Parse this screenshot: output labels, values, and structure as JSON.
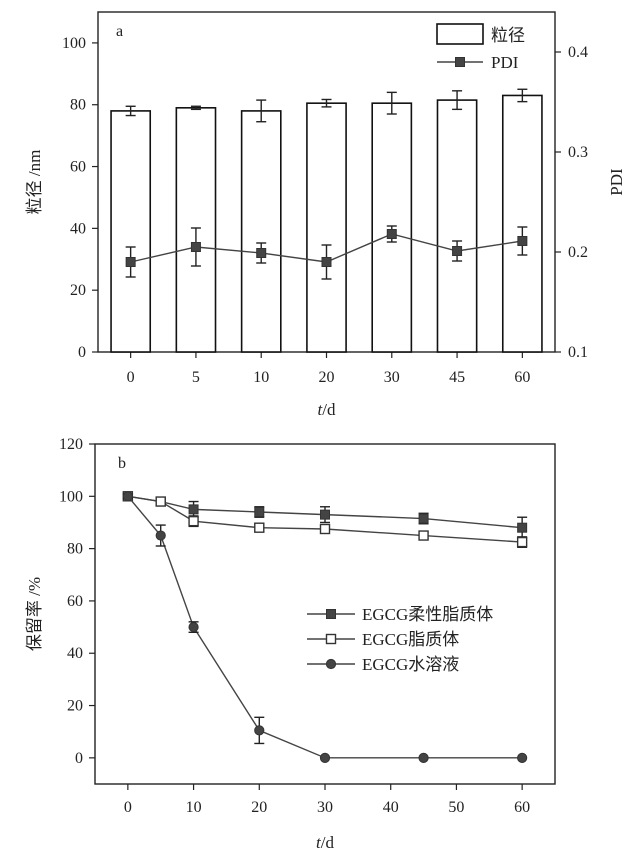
{
  "chart_data": [
    {
      "type": "bar",
      "panel_label": "a",
      "categories": [
        "0",
        "5",
        "10",
        "20",
        "30",
        "45",
        "60"
      ],
      "xlabel": "t/d",
      "xlabel_italic": "t",
      "xlabel_unit": "/d",
      "ylabel": "粒径 /nm",
      "ylabel_right": "PDI",
      "ylim": [
        0,
        110
      ],
      "yticks": [
        0,
        20,
        40,
        60,
        80,
        100
      ],
      "ylim_right": [
        0.1,
        0.44
      ],
      "yticks_right": [
        0.1,
        0.2,
        0.3,
        0.4
      ],
      "legend_position": "top-right",
      "series": [
        {
          "name": "粒径",
          "kind": "bar",
          "axis": "left",
          "values": [
            78,
            79,
            78,
            80.5,
            80.5,
            81.5,
            83
          ],
          "errors": [
            1.5,
            0.5,
            3.5,
            1.2,
            3.5,
            3.0,
            2.0
          ],
          "color": "#ffffff"
        },
        {
          "name": "PDI",
          "kind": "line",
          "axis": "right",
          "marker": "square",
          "values": [
            0.19,
            0.205,
            0.199,
            0.19,
            0.218,
            0.201,
            0.211
          ],
          "errors": [
            0.015,
            0.019,
            0.01,
            0.017,
            0.008,
            0.01,
            0.014
          ],
          "color": "#444444"
        }
      ]
    },
    {
      "type": "line",
      "panel_label": "b",
      "x": [
        0,
        5,
        10,
        20,
        30,
        45,
        60
      ],
      "xlim": [
        -5,
        65
      ],
      "xticks": [
        0,
        10,
        20,
        30,
        40,
        50,
        60
      ],
      "xlabel": "t/d",
      "xlabel_italic": "t",
      "xlabel_unit": "/d",
      "ylabel": "保留率 /%",
      "ylim": [
        -10,
        120
      ],
      "yticks": [
        0,
        20,
        40,
        60,
        80,
        100,
        120
      ],
      "legend_position": "center-right",
      "series": [
        {
          "name": "EGCG柔性脂质体",
          "marker": "filled-square",
          "values": [
            100,
            98,
            95,
            94,
            93,
            91.5,
            88
          ],
          "errors": [
            0.8,
            1.0,
            3.0,
            2.0,
            3.0,
            2.0,
            4.0
          ],
          "color": "#444444"
        },
        {
          "name": "EGCG脂质体",
          "marker": "open-square",
          "values": [
            100,
            98,
            90.5,
            88,
            87.5,
            85,
            82.5
          ],
          "errors": [
            0.8,
            1.0,
            2.0,
            1.5,
            1.5,
            1.2,
            2.0
          ],
          "color": "#444444"
        },
        {
          "name": "EGCG水溶液",
          "marker": "filled-circle",
          "values": [
            100,
            85,
            50,
            10.5,
            0,
            0,
            0
          ],
          "errors": [
            0.8,
            4.0,
            2.0,
            5.0,
            0,
            0,
            0
          ],
          "color": "#444444"
        }
      ]
    }
  ]
}
